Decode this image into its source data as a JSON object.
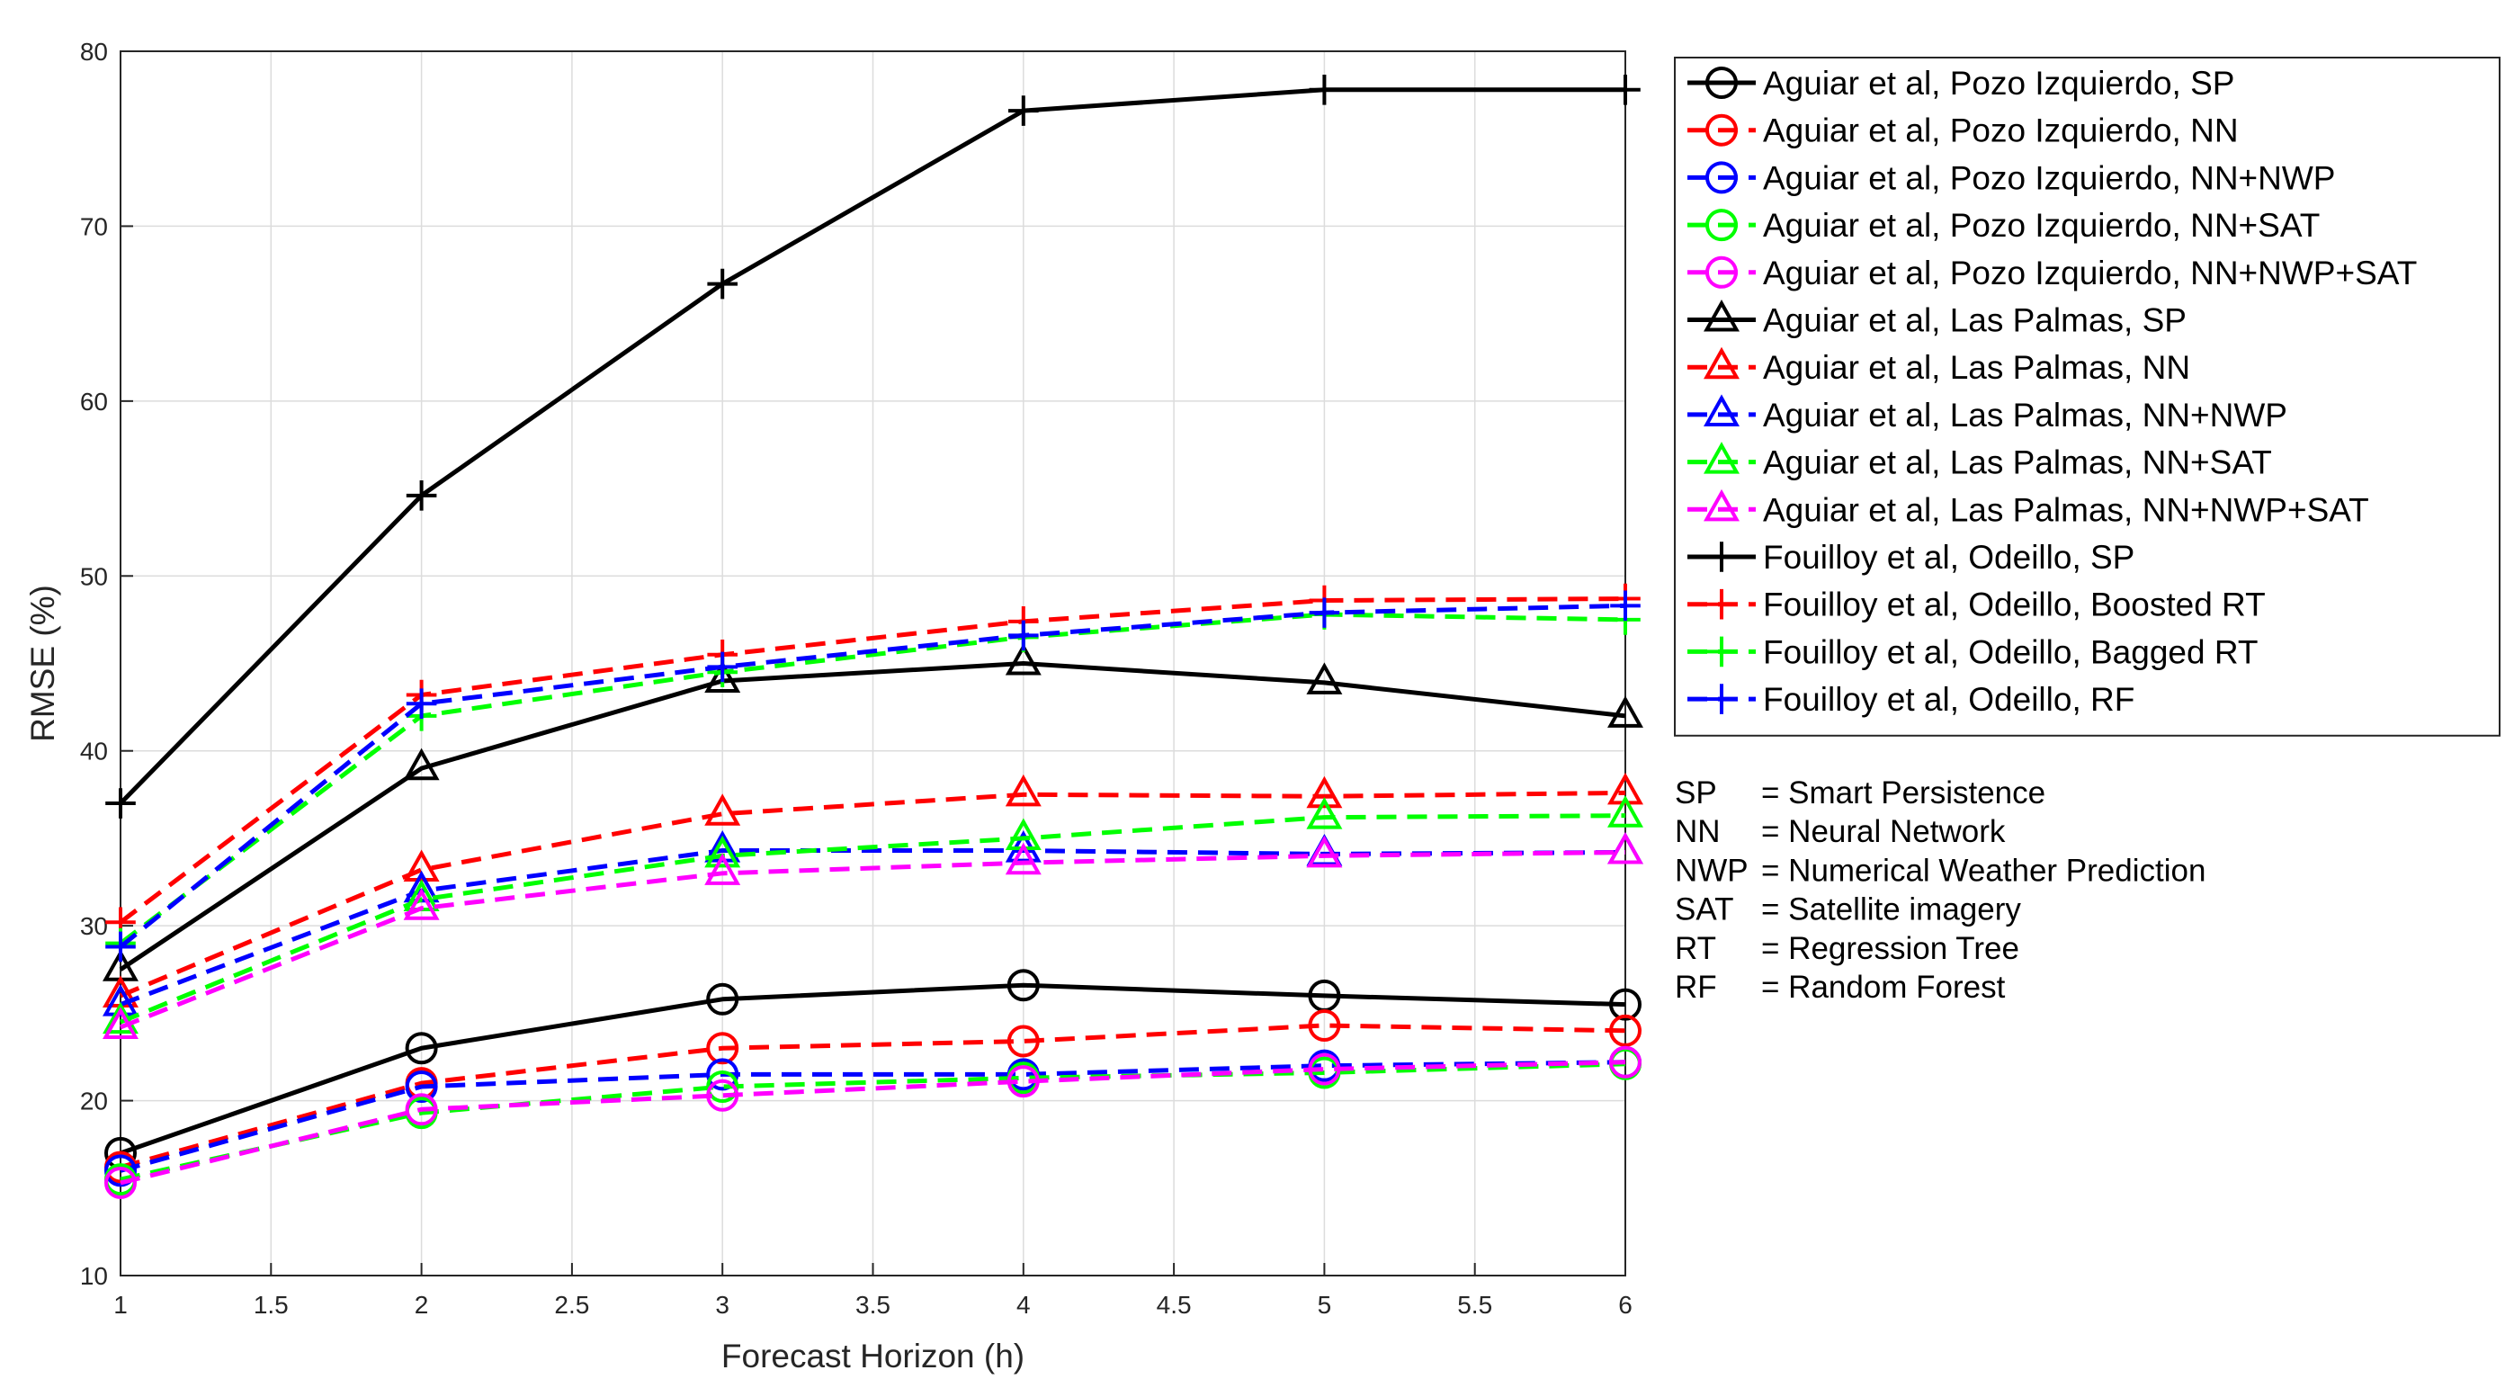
{
  "chart_data": {
    "type": "line",
    "title": "",
    "xlabel": "Forecast Horizon (h)",
    "ylabel": "RMSE (%)",
    "xlim": [
      1,
      6
    ],
    "ylim": [
      10,
      80
    ],
    "xticks": [
      1,
      1.5,
      2,
      2.5,
      3,
      3.5,
      4,
      4.5,
      5,
      5.5,
      6
    ],
    "xtick_labels": [
      "1",
      "1.5",
      "2",
      "2.5",
      "3",
      "3.5",
      "4",
      "4.5",
      "5",
      "5.5",
      "6"
    ],
    "yticks": [
      10,
      20,
      30,
      40,
      50,
      60,
      70,
      80
    ],
    "ytick_labels": [
      "10",
      "20",
      "30",
      "40",
      "50",
      "60",
      "70",
      "80"
    ],
    "grid": true,
    "legend_position": "outside-right",
    "x": [
      1,
      2,
      3,
      4,
      5,
      6
    ],
    "series": [
      {
        "name": "Aguiar et al, Pozo Izquierdo, SP",
        "color": "#000000",
        "dash": "solid",
        "marker": "circle",
        "values": [
          17.0,
          23.0,
          25.8,
          26.6,
          26.0,
          25.5
        ]
      },
      {
        "name": "Aguiar et al, Pozo Izquierdo, NN",
        "color": "#ff0000",
        "dash": "dashed",
        "marker": "circle",
        "values": [
          16.2,
          21.0,
          23.0,
          23.4,
          24.3,
          24.0
        ]
      },
      {
        "name": "Aguiar et al, Pozo Izquierdo, NN+NWP",
        "color": "#0000ff",
        "dash": "dashed",
        "marker": "circle",
        "values": [
          16.0,
          20.8,
          21.5,
          21.5,
          22.0,
          22.2
        ]
      },
      {
        "name": "Aguiar et al, Pozo Izquierdo, NN+SAT",
        "color": "#00ff00",
        "dash": "dashed",
        "marker": "circle",
        "values": [
          15.5,
          19.3,
          20.8,
          21.3,
          21.6,
          22.1
        ]
      },
      {
        "name": "Aguiar et al, Pozo Izquierdo, NN+NWP+SAT",
        "color": "#ff00ff",
        "dash": "dashed",
        "marker": "circle",
        "values": [
          15.3,
          19.5,
          20.3,
          21.1,
          21.8,
          22.2
        ]
      },
      {
        "name": "Aguiar et al, Las Palmas, SP",
        "color": "#000000",
        "dash": "solid",
        "marker": "triangle",
        "values": [
          27.5,
          39.0,
          44.0,
          45.0,
          43.9,
          42.0
        ]
      },
      {
        "name": "Aguiar et al, Las Palmas, NN",
        "color": "#ff0000",
        "dash": "dashed",
        "marker": "triangle",
        "values": [
          26.0,
          33.2,
          36.4,
          37.5,
          37.4,
          37.6
        ]
      },
      {
        "name": "Aguiar et al, Las Palmas, NN+NWP",
        "color": "#0000ff",
        "dash": "dashed",
        "marker": "triangle",
        "values": [
          25.5,
          32.0,
          34.3,
          34.3,
          34.1,
          34.2
        ]
      },
      {
        "name": "Aguiar et al, Las Palmas, NN+SAT",
        "color": "#00ff00",
        "dash": "dashed",
        "marker": "triangle",
        "values": [
          24.5,
          31.5,
          34.0,
          35.0,
          36.2,
          36.3
        ]
      },
      {
        "name": "Aguiar et al, Las Palmas, NN+NWP+SAT",
        "color": "#ff00ff",
        "dash": "dashed",
        "marker": "triangle",
        "values": [
          24.2,
          31.0,
          33.0,
          33.6,
          34.0,
          34.2
        ]
      },
      {
        "name": "Fouilloy et al, Odeillo, SP",
        "color": "#000000",
        "dash": "solid",
        "marker": "plus",
        "values": [
          37.0,
          54.6,
          66.7,
          76.6,
          77.8,
          77.8
        ]
      },
      {
        "name": "Fouilloy et al, Odeillo, Boosted RT",
        "color": "#ff0000",
        "dash": "dashed",
        "marker": "plus",
        "values": [
          30.2,
          43.2,
          45.5,
          47.4,
          48.6,
          48.7
        ]
      },
      {
        "name": "Fouilloy et al, Odeillo, Bagged RT",
        "color": "#00ff00",
        "dash": "dashed",
        "marker": "plus",
        "values": [
          29.0,
          42.0,
          44.5,
          46.5,
          47.8,
          47.5
        ]
      },
      {
        "name": "Fouilloy et al, Odeillo, RF",
        "color": "#0000ff",
        "dash": "dashed",
        "marker": "plus",
        "values": [
          28.8,
          42.7,
          44.8,
          46.6,
          47.9,
          48.3
        ]
      }
    ],
    "annotations": [
      {
        "abbr": "SP",
        "text": "= Smart Persistence"
      },
      {
        "abbr": "NN",
        "text": "= Neural Network"
      },
      {
        "abbr": "NWP",
        "text": "= Numerical Weather Prediction"
      },
      {
        "abbr": "SAT",
        "text": "= Satellite imagery"
      },
      {
        "abbr": "RT",
        "text": "= Regression Tree"
      },
      {
        "abbr": "RF",
        "text": "= Random Forest"
      }
    ]
  }
}
